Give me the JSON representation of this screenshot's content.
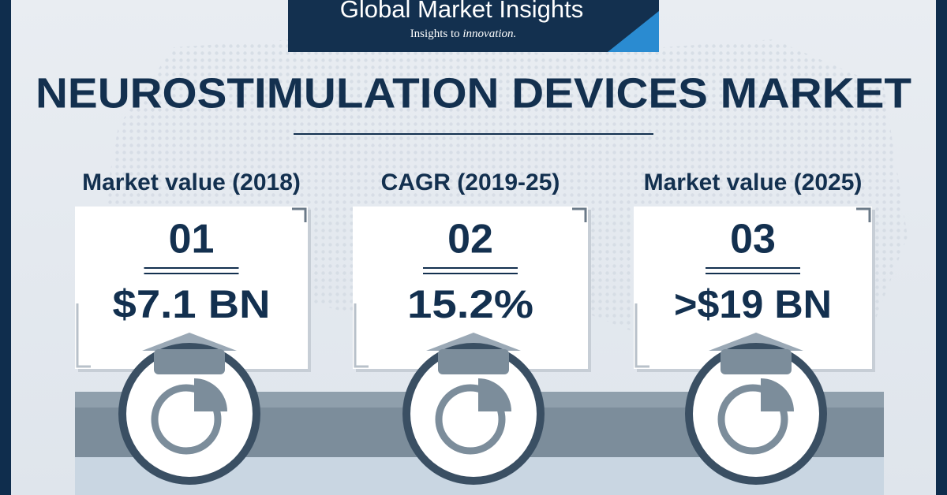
{
  "header": {
    "brand": "Global Market Insights",
    "tagline_prefix": "Insights to",
    "tagline_emphasis": "innovation."
  },
  "title": "NEUROSTIMULATION DEVICES MARKET",
  "cards": [
    {
      "label": "Market value (2018)",
      "number": "01",
      "value": "$7.1 BN"
    },
    {
      "label": "CAGR (2019-25)",
      "number": "02",
      "value": "15.2%"
    },
    {
      "label": "Market value (2025)",
      "number": "03",
      "value": ">$19 BN"
    }
  ]
}
